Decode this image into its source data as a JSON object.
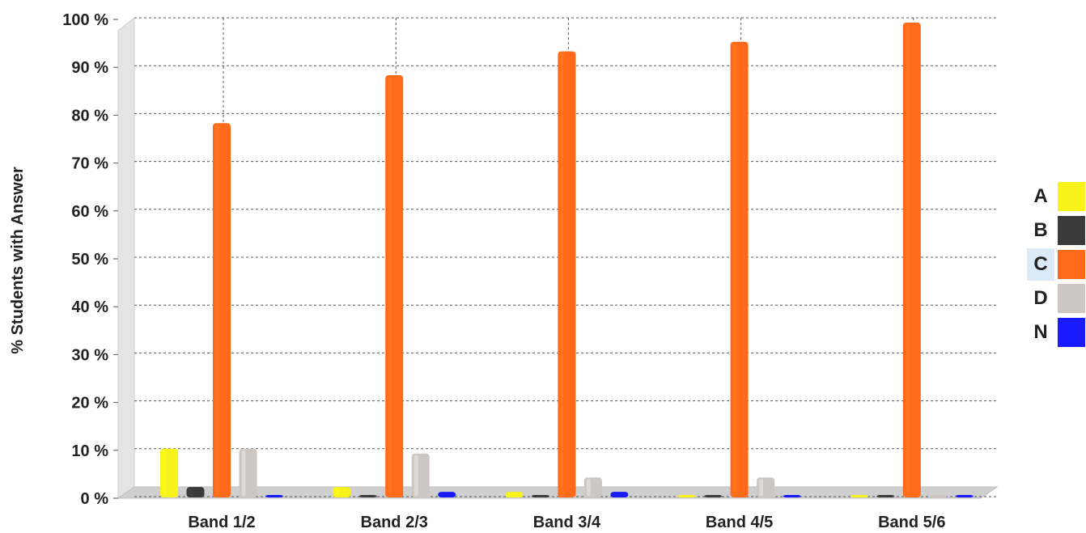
{
  "chart_data": {
    "type": "bar",
    "title": "",
    "xlabel": "",
    "ylabel": "% Students with Answer",
    "ylim": [
      0,
      100
    ],
    "yticks": [
      "0 %",
      "10 %",
      "20 %",
      "30 %",
      "40 %",
      "50 %",
      "60 %",
      "70 %",
      "80 %",
      "90 %",
      "100 %"
    ],
    "grid": true,
    "legend_position": "right",
    "categories": [
      "Band 1/2",
      "Band 2/3",
      "Band 3/4",
      "Band 4/5",
      "Band 5/6"
    ],
    "series": [
      {
        "name": "A",
        "color": "#f7f21a",
        "values": [
          10,
          2,
          1,
          0,
          0
        ]
      },
      {
        "name": "B",
        "color": "#3a3a3a",
        "values": [
          2,
          0,
          0,
          0,
          0
        ]
      },
      {
        "name": "C",
        "color": "#ff6a1a",
        "values": [
          78,
          88,
          93,
          95,
          99
        ]
      },
      {
        "name": "D",
        "color": "#cdc6c3",
        "values": [
          10,
          9,
          4,
          4,
          0
        ]
      },
      {
        "name": "N",
        "color": "#1a1aff",
        "values": [
          0,
          1,
          1,
          0,
          0
        ]
      }
    ],
    "selected_legend": "C"
  }
}
